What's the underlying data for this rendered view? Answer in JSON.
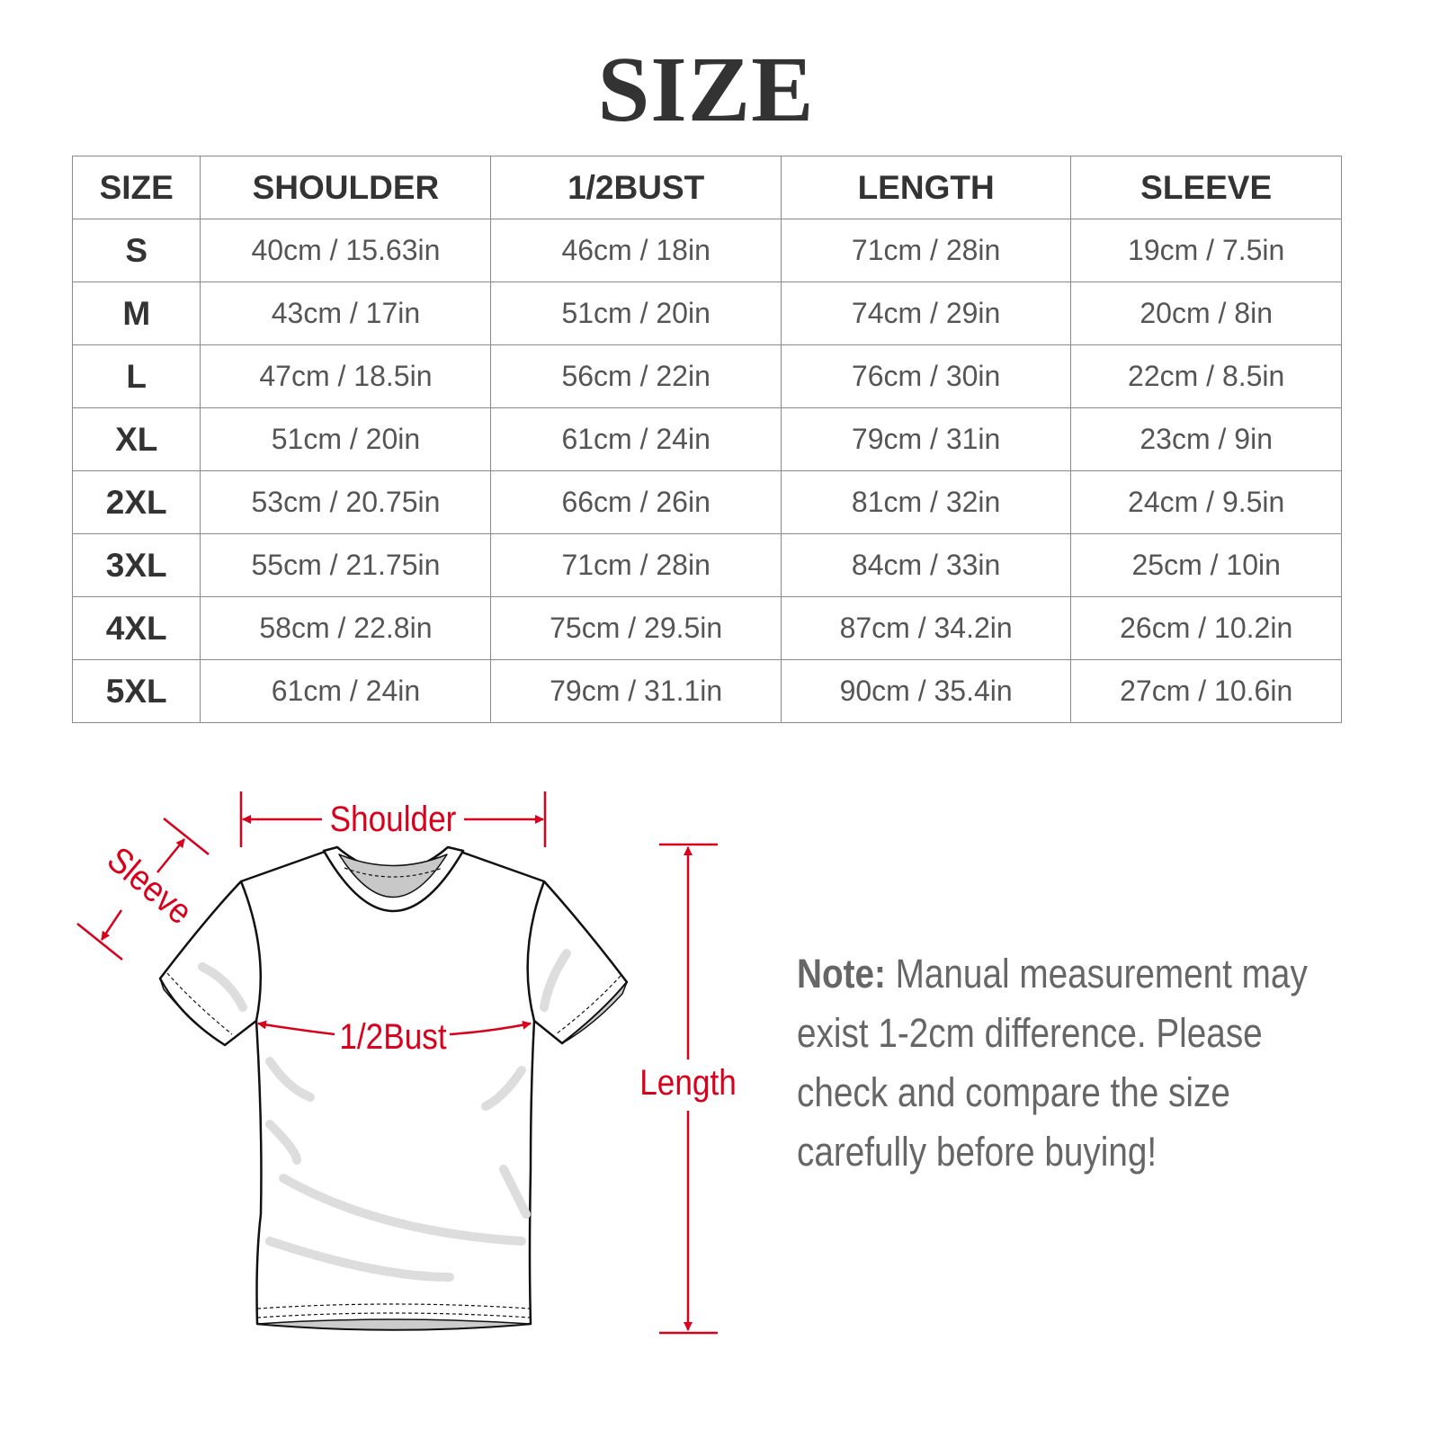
{
  "title": "SIZE",
  "table": {
    "headers": [
      "SIZE",
      "SHOULDER",
      "1/2BUST",
      "LENGTH",
      "SLEEVE"
    ],
    "rows": [
      [
        "S",
        "40cm / 15.63in",
        "46cm / 18in",
        "71cm / 28in",
        "19cm / 7.5in"
      ],
      [
        "M",
        "43cm / 17in",
        "51cm / 20in",
        "74cm / 29in",
        "20cm / 8in"
      ],
      [
        "L",
        "47cm / 18.5in",
        "56cm / 22in",
        "76cm / 30in",
        "22cm / 8.5in"
      ],
      [
        "XL",
        "51cm / 20in",
        "61cm / 24in",
        "79cm / 31in",
        "23cm / 9in"
      ],
      [
        "2XL",
        "53cm / 20.75in",
        "66cm / 26in",
        "81cm / 32in",
        "24cm / 9.5in"
      ],
      [
        "3XL",
        "55cm / 21.75in",
        "71cm / 28in",
        "84cm / 33in",
        "25cm / 10in"
      ],
      [
        "4XL",
        "58cm / 22.8in",
        "75cm / 29.5in",
        "87cm / 34.2in",
        "26cm / 10.2in"
      ],
      [
        "5XL",
        "61cm / 24in",
        "79cm / 31.1in",
        "90cm / 35.4in",
        "27cm / 10.6in"
      ]
    ]
  },
  "diagram": {
    "shoulder_label": "Shoulder",
    "sleeve_label": "Sleeve",
    "bust_label": "1/2Bust",
    "length_label": "Length",
    "accent_color": "#d9001b"
  },
  "note": {
    "label": "Note:",
    "text": "Manual measurement may exist 1-2cm difference. Please check and compare the size carefully before buying!"
  }
}
